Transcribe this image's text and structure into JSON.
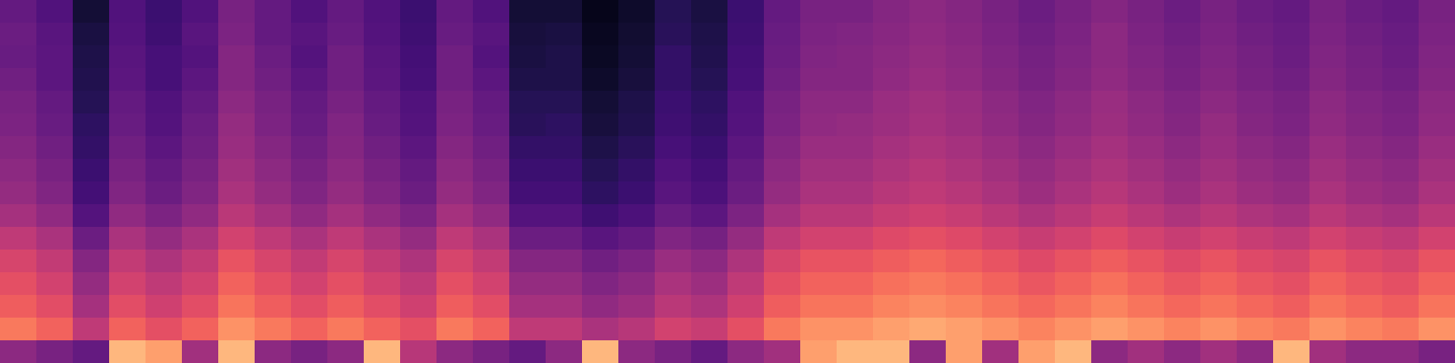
{
  "chart_data": {
    "type": "heatmap",
    "color": "magma",
    "tick_labels": false,
    "zlim": [
      0,
      100
    ],
    "cells": [
      [
        30,
        25,
        10,
        25,
        20,
        25,
        35,
        30,
        25,
        30,
        25,
        20,
        30,
        25,
        10,
        10,
        5,
        8,
        15,
        12,
        20,
        30,
        35,
        35,
        38,
        40,
        38,
        35,
        32,
        35,
        38,
        35,
        32,
        35,
        32,
        30,
        35,
        32,
        30,
        35
      ],
      [
        32,
        27,
        12,
        26,
        21,
        27,
        36,
        30,
        27,
        31,
        26,
        21,
        31,
        27,
        11,
        12,
        6,
        9,
        16,
        13,
        21,
        31,
        36,
        37,
        39,
        41,
        39,
        36,
        33,
        36,
        40,
        36,
        33,
        36,
        33,
        31,
        36,
        33,
        31,
        36
      ],
      [
        31,
        28,
        13,
        27,
        23,
        26,
        38,
        32,
        26,
        33,
        27,
        22,
        33,
        26,
        12,
        13,
        7,
        10,
        18,
        14,
        22,
        32,
        37,
        38,
        40,
        42,
        40,
        37,
        34,
        37,
        40,
        37,
        34,
        37,
        34,
        32,
        37,
        34,
        32,
        37
      ],
      [
        33,
        28,
        14,
        28,
        23,
        28,
        38,
        33,
        28,
        33,
        28,
        23,
        33,
        28,
        13,
        13,
        8,
        11,
        18,
        15,
        23,
        33,
        38,
        38,
        41,
        43,
        41,
        38,
        35,
        38,
        41,
        38,
        35,
        38,
        35,
        33,
        38,
        35,
        33,
        38
      ],
      [
        35,
        30,
        15,
        30,
        25,
        30,
        40,
        35,
        30,
        35,
        30,
        25,
        35,
        30,
        15,
        15,
        10,
        13,
        20,
        17,
        25,
        35,
        40,
        40,
        43,
        45,
        43,
        40,
        37,
        40,
        43,
        40,
        37,
        40,
        37,
        35,
        40,
        37,
        35,
        40
      ],
      [
        36,
        31,
        17,
        31,
        26,
        32,
        42,
        36,
        31,
        37,
        31,
        26,
        36,
        31,
        16,
        17,
        11,
        14,
        21,
        18,
        26,
        36,
        41,
        42,
        44,
        46,
        44,
        41,
        38,
        41,
        44,
        41,
        38,
        42,
        38,
        36,
        41,
        38,
        36,
        41
      ],
      [
        38,
        33,
        18,
        33,
        28,
        33,
        43,
        38,
        33,
        38,
        33,
        28,
        38,
        33,
        18,
        18,
        13,
        16,
        23,
        20,
        28,
        38,
        43,
        43,
        46,
        48,
        46,
        43,
        40,
        43,
        46,
        43,
        40,
        43,
        40,
        38,
        43,
        40,
        38,
        43
      ],
      [
        40,
        35,
        20,
        35,
        30,
        35,
        45,
        40,
        35,
        40,
        35,
        30,
        40,
        35,
        20,
        20,
        15,
        18,
        25,
        22,
        30,
        40,
        45,
        45,
        48,
        50,
        48,
        45,
        42,
        45,
        48,
        45,
        42,
        45,
        42,
        40,
        45,
        42,
        40,
        45
      ],
      [
        42,
        37,
        22,
        37,
        32,
        37,
        47,
        42,
        37,
        42,
        37,
        32,
        42,
        37,
        22,
        22,
        17,
        20,
        27,
        24,
        32,
        42,
        47,
        47,
        50,
        52,
        50,
        47,
        44,
        47,
        50,
        47,
        44,
        47,
        44,
        42,
        47,
        44,
        42,
        47
      ],
      [
        46,
        41,
        26,
        41,
        36,
        41,
        51,
        46,
        41,
        46,
        41,
        36,
        46,
        41,
        26,
        26,
        21,
        24,
        31,
        28,
        36,
        46,
        51,
        51,
        54,
        56,
        54,
        51,
        48,
        51,
        54,
        51,
        48,
        51,
        48,
        46,
        51,
        48,
        46,
        51
      ],
      [
        52,
        47,
        32,
        47,
        42,
        47,
        57,
        52,
        47,
        52,
        47,
        42,
        52,
        47,
        32,
        32,
        27,
        30,
        37,
        34,
        42,
        52,
        57,
        57,
        60,
        62,
        60,
        57,
        54,
        57,
        60,
        57,
        54,
        57,
        54,
        52,
        57,
        54,
        52,
        57
      ],
      [
        58,
        53,
        38,
        53,
        48,
        53,
        63,
        58,
        53,
        58,
        53,
        48,
        58,
        53,
        38,
        38,
        33,
        36,
        43,
        40,
        48,
        58,
        63,
        63,
        66,
        68,
        66,
        63,
        60,
        63,
        66,
        63,
        60,
        63,
        60,
        58,
        63,
        60,
        58,
        63
      ],
      [
        62,
        57,
        42,
        57,
        52,
        57,
        67,
        62,
        57,
        62,
        57,
        52,
        62,
        57,
        42,
        42,
        37,
        40,
        47,
        44,
        52,
        62,
        67,
        67,
        70,
        72,
        70,
        67,
        64,
        67,
        70,
        67,
        64,
        67,
        64,
        62,
        67,
        64,
        62,
        67
      ],
      [
        66,
        61,
        46,
        61,
        56,
        61,
        71,
        66,
        61,
        66,
        61,
        56,
        66,
        61,
        46,
        46,
        41,
        44,
        51,
        48,
        56,
        66,
        71,
        71,
        74,
        76,
        74,
        71,
        68,
        71,
        74,
        71,
        68,
        71,
        68,
        66,
        71,
        68,
        66,
        71
      ],
      [
        72,
        67,
        52,
        67,
        62,
        67,
        77,
        72,
        67,
        72,
        67,
        62,
        72,
        67,
        52,
        52,
        47,
        50,
        57,
        54,
        62,
        72,
        77,
        77,
        80,
        82,
        80,
        77,
        74,
        77,
        80,
        77,
        74,
        77,
        74,
        72,
        77,
        74,
        72,
        77
      ],
      [
        40,
        35,
        30,
        85,
        80,
        45,
        85,
        40,
        35,
        40,
        85,
        50,
        40,
        35,
        30,
        40,
        85,
        40,
        35,
        30,
        40,
        45,
        80,
        85,
        85,
        40,
        80,
        45,
        80,
        85,
        40,
        45,
        40,
        45,
        40,
        85,
        45,
        40,
        40,
        35
      ]
    ]
  }
}
